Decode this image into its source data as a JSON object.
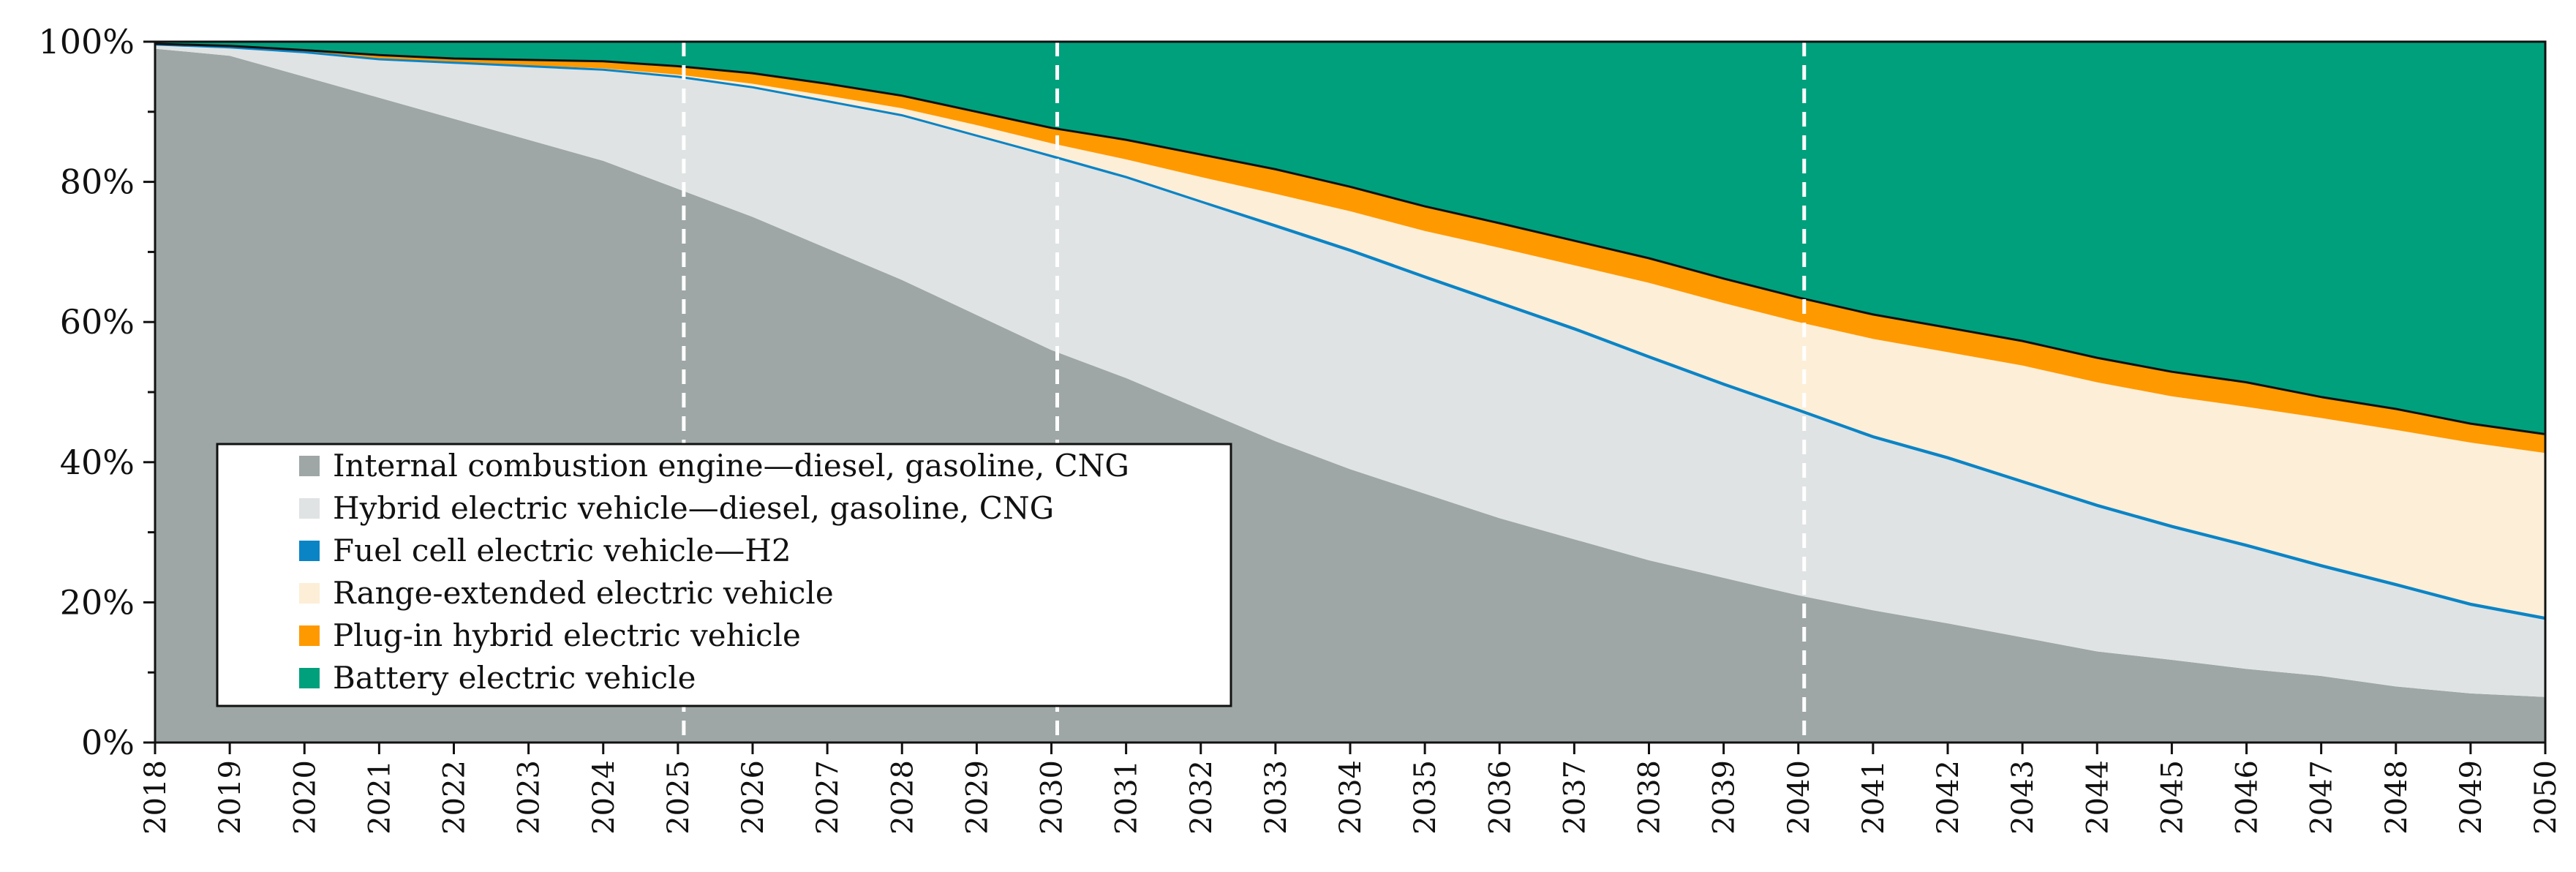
{
  "chart_data": {
    "type": "area",
    "stacked": true,
    "normalized": true,
    "title": "",
    "xlabel": "",
    "ylabel": "",
    "ylim": [
      0,
      100
    ],
    "yticks": [
      "0%",
      "20%",
      "40%",
      "60%",
      "80%",
      "100%"
    ],
    "x": [
      2018,
      2019,
      2020,
      2021,
      2022,
      2023,
      2024,
      2025,
      2026,
      2027,
      2028,
      2029,
      2030,
      2031,
      2032,
      2033,
      2034,
      2035,
      2036,
      2037,
      2038,
      2039,
      2040,
      2041,
      2042,
      2043,
      2044,
      2045,
      2046,
      2047,
      2048,
      2049,
      2050
    ],
    "series": [
      {
        "name": "Internal combustion engine—diesel, gasoline, CNG",
        "color": "#9ea7a6",
        "values": [
          99,
          98,
          95,
          92,
          89,
          86,
          83,
          79,
          75,
          70.5,
          66,
          61,
          56,
          52,
          47.5,
          43,
          39,
          35.5,
          32,
          29,
          26,
          23.5,
          21,
          19,
          17,
          15,
          13,
          11.8,
          10.5,
          9.5,
          8,
          7,
          6.5
        ]
      },
      {
        "name": "Hybrid electric vehicle—diesel, gasoline, CNG",
        "color": "#dfe3e3",
        "values": [
          0.6,
          1.2,
          3.5,
          5.5,
          8,
          10.5,
          13,
          16,
          18.5,
          21,
          23.5,
          25.5,
          27.5,
          28.5,
          29.5,
          30.5,
          31,
          30.7,
          30.5,
          29.8,
          28.8,
          27.4,
          26.2,
          24.7,
          23.4,
          22,
          20.6,
          18.8,
          17.4,
          15.5,
          14.3,
          12.5,
          11
        ]
      },
      {
        "name": "Fuel cell electric vehicle—H2",
        "color": "#0b84c6",
        "values": [
          0,
          0,
          0,
          0,
          0,
          0,
          0,
          0,
          0,
          0,
          0,
          0.1,
          0.2,
          0.2,
          0.2,
          0.3,
          0.3,
          0.3,
          0.3,
          0.3,
          0.3,
          0.3,
          0.3,
          0.3,
          0.3,
          0.3,
          0.3,
          0.3,
          0.3,
          0.3,
          0.3,
          0.3,
          0.3
        ]
      },
      {
        "name": "Range-extended electric vehicle",
        "color": "#fdeed7",
        "values": [
          0,
          0,
          0,
          0,
          0,
          0.1,
          0.2,
          0.3,
          0.5,
          0.8,
          1,
          1.5,
          1.8,
          2.5,
          3.5,
          4.5,
          5.5,
          6.5,
          7.8,
          9,
          10.5,
          11.5,
          12.5,
          14,
          15,
          16.5,
          17.5,
          18.5,
          19.7,
          21,
          22,
          23,
          23.5
        ]
      },
      {
        "name": "Plug-in hybrid electric vehicle",
        "color": "#ff9900",
        "values": [
          0.1,
          0.2,
          0.3,
          0.6,
          0.6,
          0.8,
          1,
          1.2,
          1.5,
          1.7,
          1.8,
          1.9,
          2.2,
          2.8,
          3.2,
          3.5,
          3.5,
          3.5,
          3.5,
          3.5,
          3.5,
          3.5,
          3.5,
          3.5,
          3.5,
          3.5,
          3.5,
          3.5,
          3.5,
          3,
          3,
          2.7,
          2.7
        ]
      },
      {
        "name": "Battery electric vehicle",
        "color": "#00a07d",
        "values": [
          0.3,
          0.6,
          1.2,
          1.9,
          2.4,
          2.6,
          2.8,
          3.5,
          4.5,
          6,
          7.7,
          10,
          12.3,
          14,
          16.1,
          18.2,
          20.7,
          23.5,
          25.9,
          28.4,
          30.9,
          33.8,
          36.5,
          39.2,
          40.8,
          42.7,
          45.1,
          47.1,
          48.6,
          50.7,
          52.4,
          54.5,
          56
        ]
      }
    ],
    "legend": {
      "position": "lower-left",
      "entries": [
        "Internal combustion engine—diesel, gasoline, CNG",
        "Hybrid electric vehicle—diesel, gasoline, CNG",
        "Fuel cell electric vehicle—H2",
        "Range-extended electric vehicle",
        "Plug-in hybrid electric vehicle",
        "Battery electric vehicle"
      ]
    },
    "reference_lines": [
      2025,
      2030,
      2040
    ]
  }
}
